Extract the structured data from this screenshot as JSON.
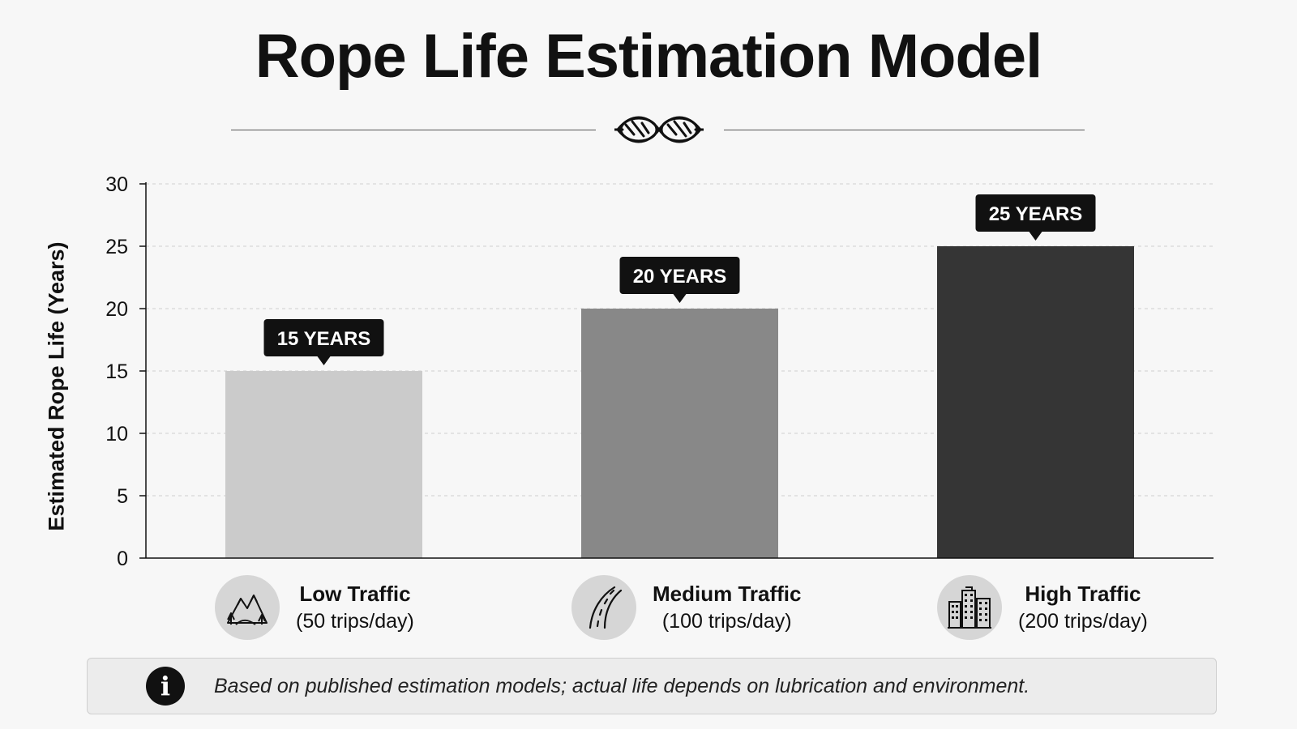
{
  "title": "Rope Life Estimation Model",
  "footnote": "Based on published estimation models; actual life depends on lubrication and environment.",
  "categories": [
    {
      "name": "Low Traffic",
      "subtitle": "(50 trips/day)",
      "icon": "mountain-icon"
    },
    {
      "name": "Medium Traffic",
      "subtitle": "(100 trips/day)",
      "icon": "road-icon"
    },
    {
      "name": "High Traffic",
      "subtitle": "(200 trips/day)",
      "icon": "buildings-icon"
    }
  ],
  "chart_data": {
    "type": "bar",
    "categories": [
      "Low Traffic",
      "Medium Traffic",
      "High Traffic"
    ],
    "values": [
      15,
      20,
      25
    ],
    "data_labels": [
      "15 YEARS",
      "20 YEARS",
      "25 YEARS"
    ],
    "bar_colors": [
      "#cbcbcb",
      "#888888",
      "#353535"
    ],
    "ylabel": "Estimated Rope Life (Years)",
    "ylim": [
      0,
      30
    ],
    "yticks": [
      0,
      5,
      10,
      15,
      20,
      25,
      30
    ],
    "grid": true
  }
}
